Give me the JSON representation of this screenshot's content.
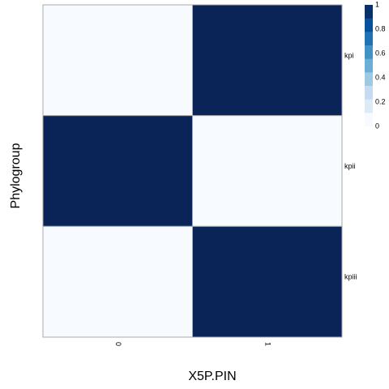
{
  "chart_data": {
    "type": "heatmap",
    "title": "",
    "xlabel": "X5P.PIN",
    "ylabel": "Phylogroup",
    "x_categories": [
      "0",
      "1"
    ],
    "y_categories": [
      "kpi",
      "kpii",
      "kpiii"
    ],
    "values": [
      [
        0,
        1
      ],
      [
        1,
        0
      ],
      [
        0,
        1
      ]
    ],
    "colorbar": {
      "range": [
        0,
        1
      ],
      "tick_labels": [
        "1",
        "0.8",
        "0.6",
        "0.4",
        "0.2",
        "0"
      ],
      "steps": [
        "#08306b",
        "#08519c",
        "#2171b5",
        "#4292c6",
        "#6baed6",
        "#9ecae1",
        "#c6dbef",
        "#deebf7",
        "#f7fbff"
      ]
    },
    "colors": {
      "low": "#f7fbff",
      "high": "#0b2458",
      "border": "#a8a8a8"
    },
    "grid": false,
    "legend_position": "top-right"
  }
}
